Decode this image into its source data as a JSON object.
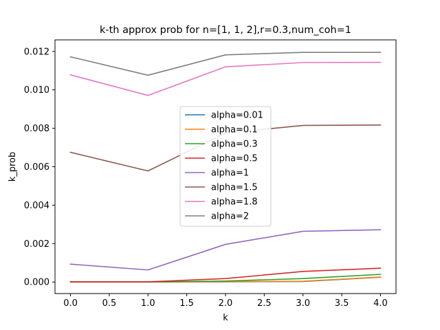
{
  "chart_data": {
    "type": "line",
    "title": "k-th approx prob for n=[1, 1, 2],r=0.3,num_coh=1",
    "xlabel": "k",
    "ylabel": "k_prob",
    "xlim": [
      -0.2,
      4.2
    ],
    "ylim": [
      -0.0006,
      0.0126
    ],
    "xticks": [
      0.0,
      0.5,
      1.0,
      1.5,
      2.0,
      2.5,
      3.0,
      3.5,
      4.0
    ],
    "xtick_labels": [
      "0.0",
      "0.5",
      "1.0",
      "1.5",
      "2.0",
      "2.5",
      "3.0",
      "3.5",
      "4.0"
    ],
    "yticks": [
      0.0,
      0.002,
      0.004,
      0.006,
      0.008,
      0.01,
      0.012
    ],
    "ytick_labels": [
      "0.000",
      "0.002",
      "0.004",
      "0.006",
      "0.008",
      "0.010",
      "0.012"
    ],
    "grid": false,
    "legend_position": "center",
    "x": [
      0,
      1,
      2,
      3,
      4
    ],
    "series": [
      {
        "name": "alpha=0.01",
        "color": "#1f77b4",
        "values": [
          0.0,
          0.0,
          1e-05,
          3e-05,
          0.00025
        ]
      },
      {
        "name": "alpha=0.1",
        "color": "#ff7f0e",
        "values": [
          0.0,
          0.0,
          2e-05,
          4e-05,
          0.00026
        ]
      },
      {
        "name": "alpha=0.3",
        "color": "#2ca02c",
        "values": [
          0.0,
          0.0,
          5e-05,
          0.00018,
          0.0004
        ]
      },
      {
        "name": "alpha=0.5",
        "color": "#d62728",
        "values": [
          1e-05,
          1e-05,
          0.00018,
          0.00055,
          0.00072
        ]
      },
      {
        "name": "alpha=1",
        "color": "#9467bd",
        "values": [
          0.00093,
          0.00063,
          0.00196,
          0.00264,
          0.00272
        ]
      },
      {
        "name": "alpha=1.5",
        "color": "#8c564b",
        "values": [
          0.00675,
          0.00578,
          0.00775,
          0.00815,
          0.00817
        ]
      },
      {
        "name": "alpha=1.8",
        "color": "#e377c2",
        "values": [
          0.01078,
          0.00971,
          0.0112,
          0.01142,
          0.01143
        ]
      },
      {
        "name": "alpha=2",
        "color": "#7f7f7f",
        "values": [
          0.01172,
          0.01076,
          0.01182,
          0.01195,
          0.01195
        ]
      }
    ]
  }
}
